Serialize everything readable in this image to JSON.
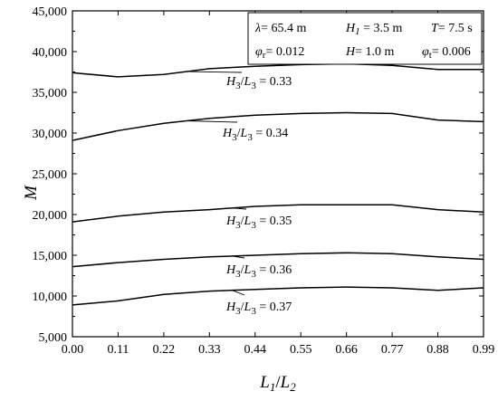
{
  "chart_data": {
    "type": "line",
    "x": [
      0.0,
      0.11,
      0.22,
      0.33,
      0.44,
      0.55,
      0.66,
      0.77,
      0.88,
      0.99
    ],
    "x_ticks": [
      "0.00",
      "0.11",
      "0.22",
      "0.33",
      "0.44",
      "0.55",
      "0.66",
      "0.77",
      "0.88",
      "0.99"
    ],
    "y_ticks": [
      "5,000",
      "10,000",
      "15,000",
      "20,000",
      "25,000",
      "30,000",
      "35,000",
      "40,000",
      "45,000"
    ],
    "xlim": [
      0,
      0.99
    ],
    "ylim": [
      5000,
      45000
    ],
    "xlabel": {
      "main": "L",
      "sub1": "1",
      "slash": "/",
      "main2": "L",
      "sub2": "2"
    },
    "ylabel": "M",
    "grid": false,
    "series": [
      {
        "label": {
          "a": "H",
          "s1": "3",
          "b": "/",
          "c": "L",
          "s2": "3",
          "d": " = 0.33"
        },
        "values": [
          37400,
          36900,
          37200,
          37900,
          38200,
          38400,
          38500,
          38300,
          37800,
          37800
        ]
      },
      {
        "label": {
          "a": "H",
          "s1": "3",
          "b": "/",
          "c": "L",
          "s2": "3",
          "d": " = 0.34"
        },
        "values": [
          29100,
          30300,
          31200,
          31800,
          32200,
          32400,
          32500,
          32400,
          31600,
          31400
        ]
      },
      {
        "label": {
          "a": "H",
          "s1": "3",
          "b": "/",
          "c": "L",
          "s2": "3",
          "d": " = 0.35"
        },
        "values": [
          19100,
          19800,
          20300,
          20600,
          21000,
          21200,
          21200,
          21200,
          20600,
          20300
        ]
      },
      {
        "label": {
          "a": "H",
          "s1": "3",
          "b": "/",
          "c": "L",
          "s2": "3",
          "d": " = 0.36"
        },
        "values": [
          13600,
          14100,
          14500,
          14800,
          15000,
          15200,
          15300,
          15200,
          14800,
          14500
        ]
      },
      {
        "label": {
          "a": "H",
          "s1": "3",
          "b": "/",
          "c": "L",
          "s2": "3",
          "d": " = 0.37"
        },
        "values": [
          8900,
          9400,
          10200,
          10600,
          10800,
          11000,
          11100,
          11000,
          10700,
          11000
        ]
      }
    ],
    "parameters": {
      "lambda": {
        "sym": "λ",
        "text": "= 65.4 m"
      },
      "H1": {
        "sym": "H",
        "sub": "1",
        "text": " = 3.5 m"
      },
      "T": {
        "sym": "T",
        "text": "= 7.5 s"
      },
      "phi_r": {
        "sym": "φ",
        "sub": "r",
        "text": "= 0.012"
      },
      "H": {
        "sym": "H",
        "text": "= 1.0 m"
      },
      "phi_t": {
        "sym": "φ",
        "sub": "t",
        "text": "= 0.006"
      }
    }
  }
}
